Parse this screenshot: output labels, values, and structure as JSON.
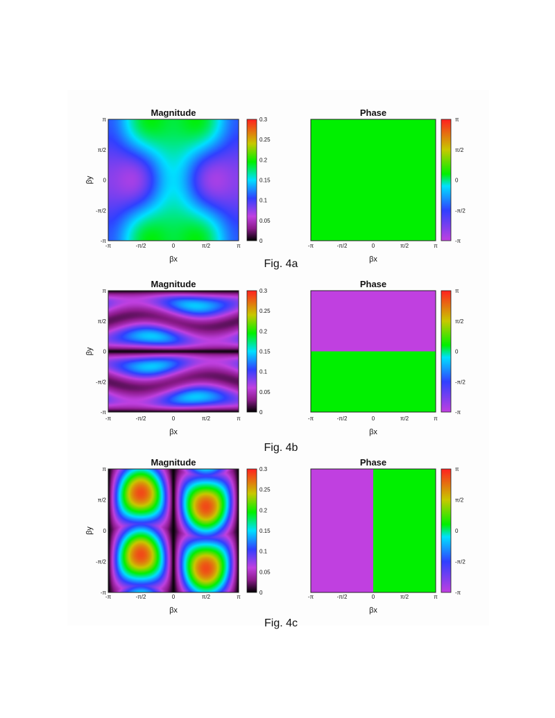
{
  "chart_data": [
    {
      "figure": "Fig. 4a",
      "panels": [
        {
          "type": "heatmap",
          "title": "Magnitude",
          "xlabel": "βx",
          "ylabel": "βy",
          "xticks": [
            "-π",
            "-π/2",
            "0",
            "π/2",
            "π"
          ],
          "yticks": [
            "π",
            "π/2",
            "0",
            "-π/2",
            "-π"
          ],
          "colorbar": {
            "ticks": [
              "0.3",
              "0.25",
              "0.2",
              "0.15",
              "0.1",
              "0.05",
              "0"
            ],
            "range": [
              0,
              0.3
            ],
            "colormap": "rainbow"
          }
        },
        {
          "type": "heatmap",
          "title": "Phase",
          "xlabel": "βx",
          "ylabel": "",
          "xticks": [
            "-π",
            "-π/2",
            "0",
            "π/2",
            "π"
          ],
          "colorbar": {
            "ticks": [
              "π",
              "π/2",
              "0",
              "-π/2",
              "-π"
            ],
            "range": [
              "-π",
              "π"
            ],
            "colormap": "rainbow"
          },
          "regions": [
            {
              "area": "entire",
              "value": "0",
              "color": "#00f000"
            }
          ]
        }
      ]
    },
    {
      "figure": "Fig. 4b",
      "panels": [
        {
          "type": "heatmap",
          "title": "Magnitude",
          "xlabel": "βx",
          "ylabel": "βy",
          "xticks": [
            "-π",
            "-π/2",
            "0",
            "π/2",
            "π"
          ],
          "yticks": [
            "π",
            "π/2",
            "0",
            "-π/2",
            "-π"
          ],
          "colorbar": {
            "ticks": [
              "0.3",
              "0.25",
              "0.2",
              "0.15",
              "0.1",
              "0.05",
              "0"
            ],
            "range": [
              0,
              0.3
            ],
            "colormap": "rainbow"
          }
        },
        {
          "type": "heatmap",
          "title": "Phase",
          "xlabel": "βx",
          "ylabel": "",
          "xticks": [
            "-π",
            "-π/2",
            "0",
            "π/2",
            "π"
          ],
          "colorbar": {
            "ticks": [
              "π",
              "π/2",
              "0",
              "-π/2",
              "-π"
            ],
            "range": [
              "-π",
              "π"
            ],
            "colormap": "rainbow"
          },
          "regions": [
            {
              "area": "βy > 0",
              "value": "-π",
              "color": "#c040e0"
            },
            {
              "area": "βy < 0",
              "value": "0",
              "color": "#00f000"
            }
          ]
        }
      ]
    },
    {
      "figure": "Fig. 4c",
      "panels": [
        {
          "type": "heatmap",
          "title": "Magnitude",
          "xlabel": "βx",
          "ylabel": "βy",
          "xticks": [
            "-π",
            "-π/2",
            "0",
            "π/2",
            "π"
          ],
          "yticks": [
            "π",
            "π/2",
            "0",
            "-π/2",
            "-π"
          ],
          "colorbar": {
            "ticks": [
              "0.3",
              "0.25",
              "0.2",
              "0.15",
              "0.1",
              "0.05",
              "0"
            ],
            "range": [
              0,
              0.3
            ],
            "colormap": "rainbow"
          }
        },
        {
          "type": "heatmap",
          "title": "Phase",
          "xlabel": "βx",
          "ylabel": "",
          "xticks": [
            "-π",
            "-π/2",
            "0",
            "π/2",
            "π"
          ],
          "colorbar": {
            "ticks": [
              "π",
              "π/2",
              "0",
              "-π/2",
              "-π"
            ],
            "range": [
              "-π",
              "π"
            ],
            "colormap": "rainbow"
          },
          "regions": [
            {
              "area": "βx < 0",
              "value": "-π",
              "color": "#c040e0"
            },
            {
              "area": "βx > 0",
              "value": "0",
              "color": "#00f000"
            }
          ]
        }
      ]
    }
  ]
}
